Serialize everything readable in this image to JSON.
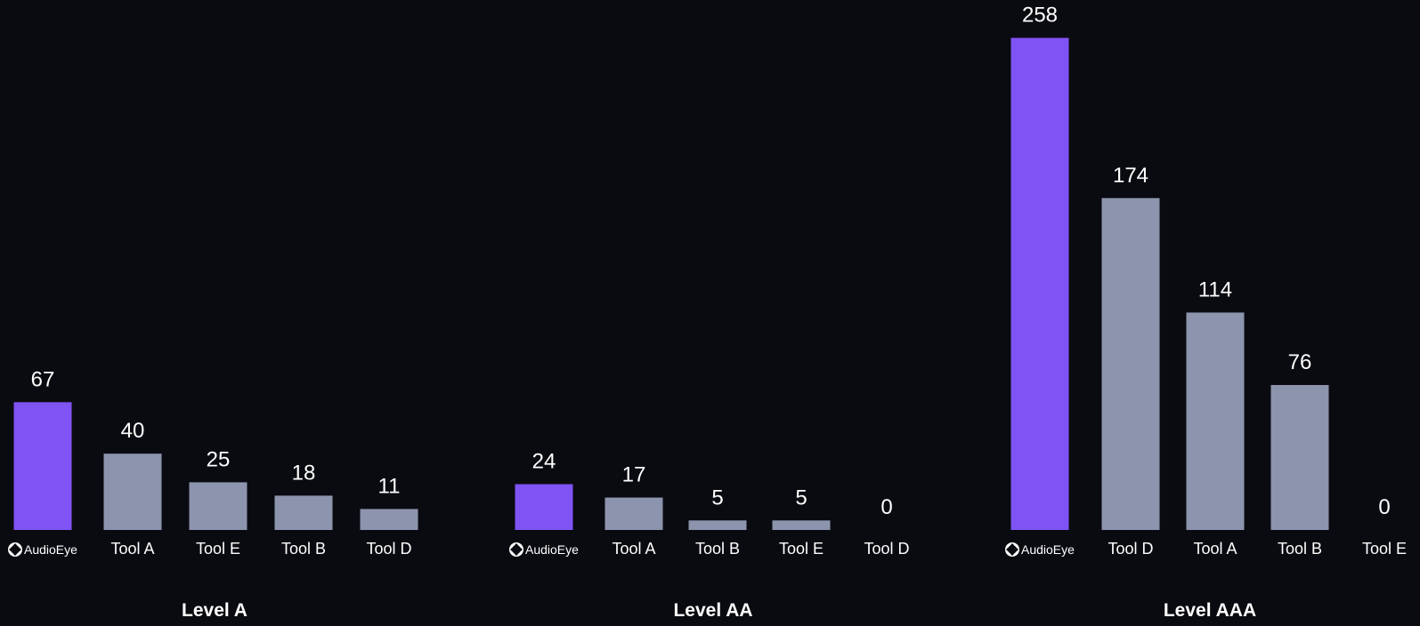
{
  "colors": {
    "background": "#0a0b10",
    "highlight": "#8053f5",
    "other": "#8d94ae",
    "text": "#ffffff"
  },
  "brand": {
    "name": "AudioEye",
    "icon": "audioeye-logo-icon"
  },
  "chart_data": [
    {
      "type": "bar",
      "xlabel": "Level A",
      "categories": [
        "AudioEye",
        "Tool A",
        "Tool E",
        "Tool B",
        "Tool D"
      ],
      "values": [
        67,
        40,
        25,
        18,
        11
      ],
      "highlight_index": 0
    },
    {
      "type": "bar",
      "xlabel": "Level AA",
      "categories": [
        "AudioEye",
        "Tool A",
        "Tool B",
        "Tool E",
        "Tool D"
      ],
      "values": [
        24,
        17,
        5,
        5,
        0
      ],
      "highlight_index": 0
    },
    {
      "type": "bar",
      "xlabel": "Level AAA",
      "categories": [
        "AudioEye",
        "Tool D",
        "Tool A",
        "Tool B",
        "Tool E"
      ],
      "values": [
        258,
        174,
        114,
        76,
        0
      ],
      "highlight_index": 0
    }
  ]
}
